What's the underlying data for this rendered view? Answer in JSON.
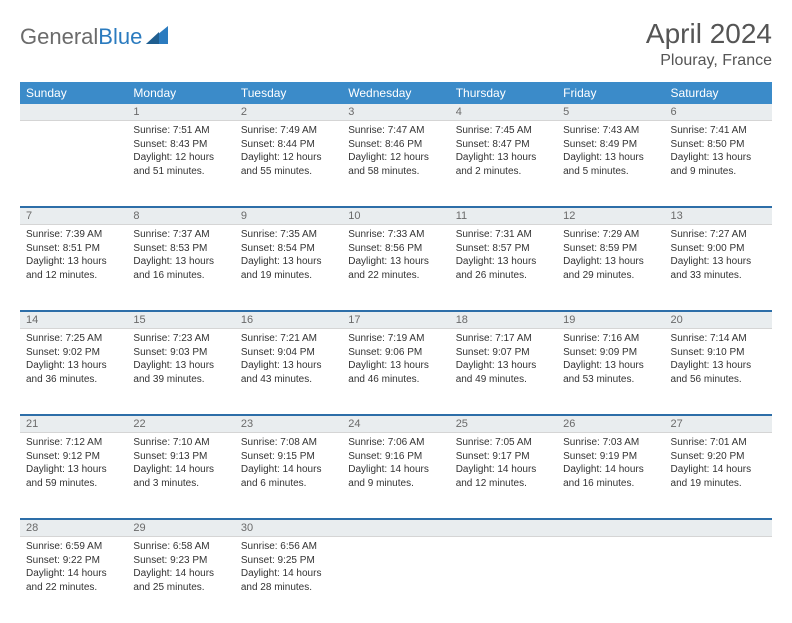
{
  "brand": {
    "part1": "General",
    "part2": "Blue"
  },
  "title": "April 2024",
  "location": "Plouray, France",
  "colors": {
    "header_bg": "#3b8bc9",
    "daynum_bg": "#e9edef",
    "row_divider": "#2d6ea8",
    "text": "#333333",
    "muted": "#6a6a6a"
  },
  "weekdays": [
    "Sunday",
    "Monday",
    "Tuesday",
    "Wednesday",
    "Thursday",
    "Friday",
    "Saturday"
  ],
  "grid": [
    [
      {
        "n": "",
        "sunrise": "",
        "sunset": "",
        "daylight": ""
      },
      {
        "n": "1",
        "sunrise": "Sunrise: 7:51 AM",
        "sunset": "Sunset: 8:43 PM",
        "daylight": "Daylight: 12 hours and 51 minutes."
      },
      {
        "n": "2",
        "sunrise": "Sunrise: 7:49 AM",
        "sunset": "Sunset: 8:44 PM",
        "daylight": "Daylight: 12 hours and 55 minutes."
      },
      {
        "n": "3",
        "sunrise": "Sunrise: 7:47 AM",
        "sunset": "Sunset: 8:46 PM",
        "daylight": "Daylight: 12 hours and 58 minutes."
      },
      {
        "n": "4",
        "sunrise": "Sunrise: 7:45 AM",
        "sunset": "Sunset: 8:47 PM",
        "daylight": "Daylight: 13 hours and 2 minutes."
      },
      {
        "n": "5",
        "sunrise": "Sunrise: 7:43 AM",
        "sunset": "Sunset: 8:49 PM",
        "daylight": "Daylight: 13 hours and 5 minutes."
      },
      {
        "n": "6",
        "sunrise": "Sunrise: 7:41 AM",
        "sunset": "Sunset: 8:50 PM",
        "daylight": "Daylight: 13 hours and 9 minutes."
      }
    ],
    [
      {
        "n": "7",
        "sunrise": "Sunrise: 7:39 AM",
        "sunset": "Sunset: 8:51 PM",
        "daylight": "Daylight: 13 hours and 12 minutes."
      },
      {
        "n": "8",
        "sunrise": "Sunrise: 7:37 AM",
        "sunset": "Sunset: 8:53 PM",
        "daylight": "Daylight: 13 hours and 16 minutes."
      },
      {
        "n": "9",
        "sunrise": "Sunrise: 7:35 AM",
        "sunset": "Sunset: 8:54 PM",
        "daylight": "Daylight: 13 hours and 19 minutes."
      },
      {
        "n": "10",
        "sunrise": "Sunrise: 7:33 AM",
        "sunset": "Sunset: 8:56 PM",
        "daylight": "Daylight: 13 hours and 22 minutes."
      },
      {
        "n": "11",
        "sunrise": "Sunrise: 7:31 AM",
        "sunset": "Sunset: 8:57 PM",
        "daylight": "Daylight: 13 hours and 26 minutes."
      },
      {
        "n": "12",
        "sunrise": "Sunrise: 7:29 AM",
        "sunset": "Sunset: 8:59 PM",
        "daylight": "Daylight: 13 hours and 29 minutes."
      },
      {
        "n": "13",
        "sunrise": "Sunrise: 7:27 AM",
        "sunset": "Sunset: 9:00 PM",
        "daylight": "Daylight: 13 hours and 33 minutes."
      }
    ],
    [
      {
        "n": "14",
        "sunrise": "Sunrise: 7:25 AM",
        "sunset": "Sunset: 9:02 PM",
        "daylight": "Daylight: 13 hours and 36 minutes."
      },
      {
        "n": "15",
        "sunrise": "Sunrise: 7:23 AM",
        "sunset": "Sunset: 9:03 PM",
        "daylight": "Daylight: 13 hours and 39 minutes."
      },
      {
        "n": "16",
        "sunrise": "Sunrise: 7:21 AM",
        "sunset": "Sunset: 9:04 PM",
        "daylight": "Daylight: 13 hours and 43 minutes."
      },
      {
        "n": "17",
        "sunrise": "Sunrise: 7:19 AM",
        "sunset": "Sunset: 9:06 PM",
        "daylight": "Daylight: 13 hours and 46 minutes."
      },
      {
        "n": "18",
        "sunrise": "Sunrise: 7:17 AM",
        "sunset": "Sunset: 9:07 PM",
        "daylight": "Daylight: 13 hours and 49 minutes."
      },
      {
        "n": "19",
        "sunrise": "Sunrise: 7:16 AM",
        "sunset": "Sunset: 9:09 PM",
        "daylight": "Daylight: 13 hours and 53 minutes."
      },
      {
        "n": "20",
        "sunrise": "Sunrise: 7:14 AM",
        "sunset": "Sunset: 9:10 PM",
        "daylight": "Daylight: 13 hours and 56 minutes."
      }
    ],
    [
      {
        "n": "21",
        "sunrise": "Sunrise: 7:12 AM",
        "sunset": "Sunset: 9:12 PM",
        "daylight": "Daylight: 13 hours and 59 minutes."
      },
      {
        "n": "22",
        "sunrise": "Sunrise: 7:10 AM",
        "sunset": "Sunset: 9:13 PM",
        "daylight": "Daylight: 14 hours and 3 minutes."
      },
      {
        "n": "23",
        "sunrise": "Sunrise: 7:08 AM",
        "sunset": "Sunset: 9:15 PM",
        "daylight": "Daylight: 14 hours and 6 minutes."
      },
      {
        "n": "24",
        "sunrise": "Sunrise: 7:06 AM",
        "sunset": "Sunset: 9:16 PM",
        "daylight": "Daylight: 14 hours and 9 minutes."
      },
      {
        "n": "25",
        "sunrise": "Sunrise: 7:05 AM",
        "sunset": "Sunset: 9:17 PM",
        "daylight": "Daylight: 14 hours and 12 minutes."
      },
      {
        "n": "26",
        "sunrise": "Sunrise: 7:03 AM",
        "sunset": "Sunset: 9:19 PM",
        "daylight": "Daylight: 14 hours and 16 minutes."
      },
      {
        "n": "27",
        "sunrise": "Sunrise: 7:01 AM",
        "sunset": "Sunset: 9:20 PM",
        "daylight": "Daylight: 14 hours and 19 minutes."
      }
    ],
    [
      {
        "n": "28",
        "sunrise": "Sunrise: 6:59 AM",
        "sunset": "Sunset: 9:22 PM",
        "daylight": "Daylight: 14 hours and 22 minutes."
      },
      {
        "n": "29",
        "sunrise": "Sunrise: 6:58 AM",
        "sunset": "Sunset: 9:23 PM",
        "daylight": "Daylight: 14 hours and 25 minutes."
      },
      {
        "n": "30",
        "sunrise": "Sunrise: 6:56 AM",
        "sunset": "Sunset: 9:25 PM",
        "daylight": "Daylight: 14 hours and 28 minutes."
      },
      {
        "n": "",
        "sunrise": "",
        "sunset": "",
        "daylight": ""
      },
      {
        "n": "",
        "sunrise": "",
        "sunset": "",
        "daylight": ""
      },
      {
        "n": "",
        "sunrise": "",
        "sunset": "",
        "daylight": ""
      },
      {
        "n": "",
        "sunrise": "",
        "sunset": "",
        "daylight": ""
      }
    ]
  ]
}
